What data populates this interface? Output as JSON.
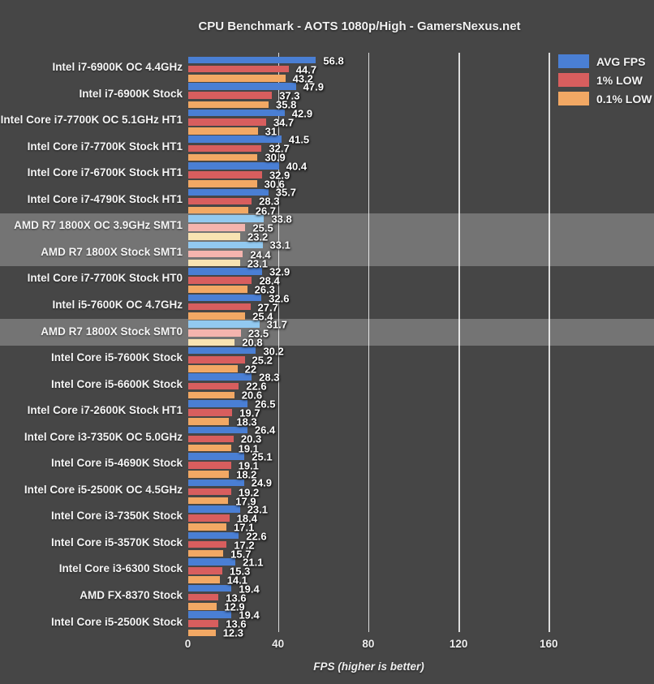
{
  "title": "CPU Benchmark - AOTS 1080p/High - GamersNexus.net",
  "xlabel": "FPS (higher is better)",
  "legend": [
    {
      "label": "AVG FPS",
      "color": "#4a7fd4"
    },
    {
      "label": "1% LOW",
      "color": "#d85e5e"
    },
    {
      "label": "0.1% LOW",
      "color": "#f2a864"
    }
  ],
  "colors": {
    "background": "#464646",
    "highlight_band": "#747474",
    "gridline": "#ffffff",
    "bars_normal": [
      "#4a7fd4",
      "#d85e5e",
      "#f2a864"
    ],
    "bars_highlighted": [
      "#92c9f0",
      "#f4b4ae",
      "#f8e3b2"
    ]
  },
  "chart_data": {
    "type": "bar",
    "orientation": "horizontal",
    "title": "CPU Benchmark - AOTS 1080p/High - GamersNexus.net",
    "xlabel": "FPS (higher is better)",
    "xticks": [
      0,
      40,
      80,
      120,
      160
    ],
    "xlim": [
      0,
      207
    ],
    "grid": true,
    "legend_position": "top-right",
    "categories": [
      "Intel i7-6900K OC 4.4GHz",
      "Intel i7-6900K Stock",
      "Intel Core i7-7700K OC 5.1GHz HT1",
      "Intel Core i7-7700K Stock HT1",
      "Intel Core i7-6700K Stock HT1",
      "Intel Core i7-4790K Stock HT1",
      "AMD R7 1800X OC 3.9GHz SMT1",
      "AMD R7 1800X Stock SMT1",
      "Intel Core i7-7700K Stock HT0",
      "Intel i5-7600K OC 4.7GHz",
      "AMD R7 1800X Stock SMT0",
      "Intel Core i5-7600K Stock",
      "Intel Core i5-6600K Stock",
      "Intel Core i7-2600K Stock HT1",
      "Intel Core i3-7350K OC 5.0GHz",
      "Intel Core i5-4690K Stock",
      "Intel Core i5-2500K OC 4.5GHz",
      "Intel Core i3-7350K Stock",
      "Intel Core i5-3570K Stock",
      "Intel Core i3-6300 Stock",
      "AMD FX-8370 Stock",
      "Intel Core i5-2500K Stock"
    ],
    "series": [
      {
        "name": "AVG FPS",
        "values": [
          56.8,
          47.9,
          42.9,
          41.5,
          40.4,
          35.7,
          33.8,
          33.1,
          32.9,
          32.6,
          31.7,
          30.2,
          28.3,
          26.5,
          26.4,
          25.1,
          24.9,
          23.1,
          22.6,
          21.1,
          19.4,
          19.4
        ]
      },
      {
        "name": "1% LOW",
        "values": [
          44.7,
          37.3,
          34.7,
          32.7,
          32.9,
          28.3,
          25.5,
          24.4,
          28.4,
          27.7,
          23.5,
          25.2,
          22.6,
          19.7,
          20.3,
          19.1,
          19.2,
          18.4,
          17.2,
          15.3,
          13.6,
          13.6
        ]
      },
      {
        "name": "0.1% LOW",
        "values": [
          43.2,
          35.8,
          31,
          30.9,
          30.6,
          26.7,
          23.2,
          23.1,
          26.3,
          25.4,
          20.8,
          22,
          20.6,
          18.3,
          19.1,
          18.2,
          17.9,
          17.1,
          15.7,
          14.1,
          12.9,
          12.3
        ]
      }
    ],
    "highlighted_rows": [
      6,
      7,
      10
    ],
    "highlighted_categories": [
      "AMD R7 1800X OC 3.9GHz SMT1",
      "AMD R7 1800X Stock SMT1",
      "AMD R7 1800X Stock SMT0"
    ]
  }
}
